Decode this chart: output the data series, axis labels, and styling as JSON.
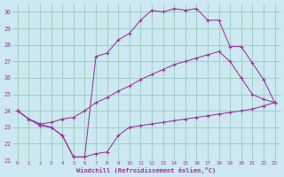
{
  "xlabel": "Windchill (Refroidissement éolien,°C)",
  "bg_color": "#cce8f0",
  "grid_color": "#99ccbb",
  "line_color": "#993399",
  "xlim": [
    -0.5,
    23.5
  ],
  "ylim": [
    21,
    30.5
  ],
  "xtick_vals": [
    0,
    1,
    2,
    3,
    4,
    5,
    6,
    7,
    8,
    9,
    10,
    11,
    12,
    13,
    14,
    15,
    16,
    17,
    18,
    19,
    20,
    21,
    22,
    23
  ],
  "ytick_vals": [
    21,
    22,
    23,
    24,
    25,
    26,
    27,
    28,
    29,
    30
  ],
  "curve1_x": [
    0,
    1,
    2,
    3,
    4,
    5,
    6,
    7,
    8,
    9,
    10,
    11,
    12,
    13,
    14,
    15,
    16,
    17,
    18,
    19,
    20,
    21,
    22,
    23
  ],
  "curve1_y": [
    24.0,
    23.5,
    23.1,
    23.0,
    22.5,
    21.2,
    21.2,
    21.4,
    21.5,
    22.5,
    23.0,
    23.1,
    23.2,
    23.3,
    23.4,
    23.5,
    23.6,
    23.7,
    23.8,
    23.9,
    24.0,
    24.1,
    24.3,
    24.5
  ],
  "curve2_x": [
    0,
    1,
    2,
    3,
    4,
    5,
    6,
    7,
    8,
    9,
    10,
    11,
    12,
    13,
    14,
    15,
    16,
    17,
    18,
    19,
    20,
    21,
    22,
    23
  ],
  "curve2_y": [
    24.0,
    23.5,
    23.2,
    23.3,
    23.5,
    23.6,
    24.0,
    24.5,
    24.8,
    25.2,
    25.5,
    25.9,
    26.2,
    26.5,
    26.8,
    27.0,
    27.2,
    27.4,
    27.6,
    27.0,
    26.0,
    25.0,
    24.7,
    24.5
  ],
  "curve3_x": [
    0,
    1,
    2,
    3,
    4,
    5,
    6,
    7,
    8,
    9,
    10,
    11,
    12,
    13,
    14,
    15,
    16,
    17,
    18,
    19,
    20,
    21,
    22,
    23
  ],
  "curve3_y": [
    24.0,
    23.5,
    23.2,
    23.0,
    22.5,
    21.2,
    21.2,
    27.3,
    27.5,
    28.3,
    28.7,
    29.5,
    30.1,
    30.0,
    30.2,
    30.1,
    30.2,
    29.5,
    29.5,
    27.9,
    27.9,
    26.9,
    25.9,
    24.5
  ]
}
